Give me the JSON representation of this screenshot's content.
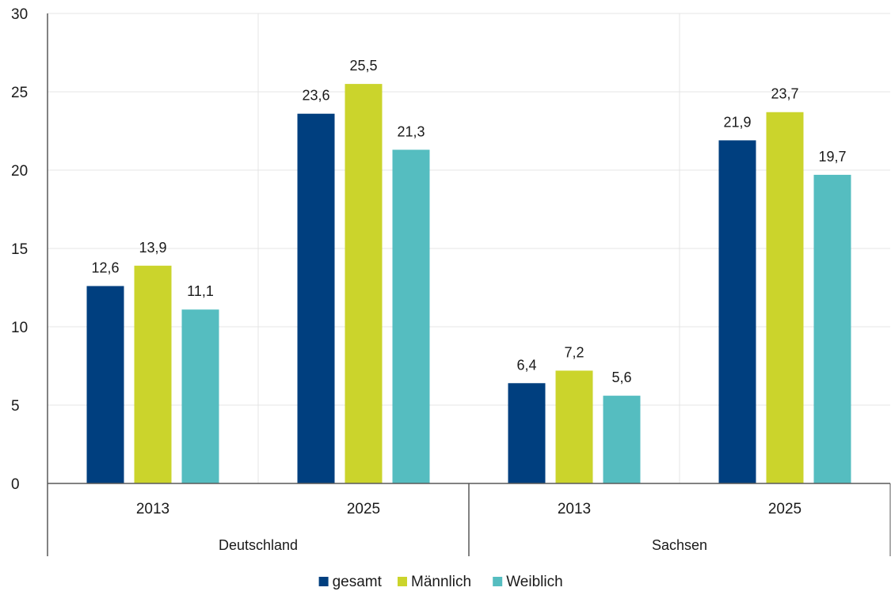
{
  "chart_data": {
    "type": "bar",
    "groups": [
      {
        "label": "Deutschland",
        "categories": [
          "2013",
          "2025"
        ]
      },
      {
        "label": "Sachsen",
        "categories": [
          "2013",
          "2025"
        ]
      }
    ],
    "series": [
      {
        "name": "gesamt",
        "color": "#003f7f",
        "values": [
          12.6,
          23.6,
          6.4,
          21.9
        ],
        "labels": [
          "12,6",
          "23,6",
          "6,4",
          "21,9"
        ]
      },
      {
        "name": "Männlich",
        "color": "#cbd42c",
        "values": [
          13.9,
          25.5,
          7.2,
          23.7
        ],
        "labels": [
          "13,9",
          "25,5",
          "7,2",
          "23,7"
        ]
      },
      {
        "name": "Weiblich",
        "color": "#55bdc0",
        "values": [
          11.1,
          21.3,
          5.6,
          19.7
        ],
        "labels": [
          "11,1",
          "21,3",
          "5,6",
          "19,7"
        ]
      }
    ],
    "ylim": [
      0,
      30
    ],
    "yticks": [
      0,
      5,
      10,
      15,
      20,
      25,
      30
    ],
    "grid": true,
    "legend_position": "bottom",
    "title": "",
    "xlabel": "",
    "ylabel": ""
  }
}
